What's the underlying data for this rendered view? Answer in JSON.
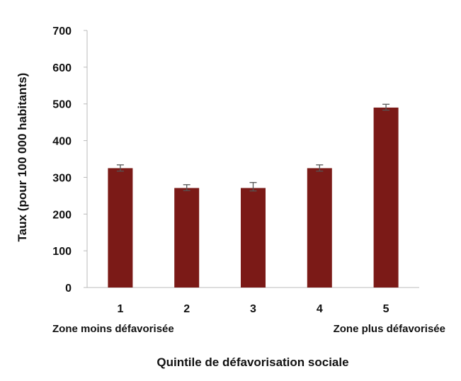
{
  "chart_data": {
    "type": "bar",
    "categories": [
      "1",
      "2",
      "3",
      "4",
      "5"
    ],
    "values": [
      325,
      271,
      271,
      325,
      490
    ],
    "error_bars": [
      {
        "low": 317,
        "high": 334
      },
      {
        "low": 264,
        "high": 280
      },
      {
        "low": 263,
        "high": 286
      },
      {
        "low": 317,
        "high": 334
      },
      {
        "low": 483,
        "high": 499
      }
    ],
    "xlabel": "Quintile de défavorisation sociale",
    "ylabel": "Taux (pour 100 000 habitants)",
    "ylim": [
      0,
      700
    ],
    "yticks": [
      0,
      100,
      200,
      300,
      400,
      500,
      600,
      700
    ],
    "x_annotations": {
      "left": "Zone moins défavorisée",
      "right": "Zone plus défavorisée"
    },
    "bar_color": "#7B1A17",
    "error_bar_color": "#555555",
    "grid": false,
    "legend": "none"
  }
}
